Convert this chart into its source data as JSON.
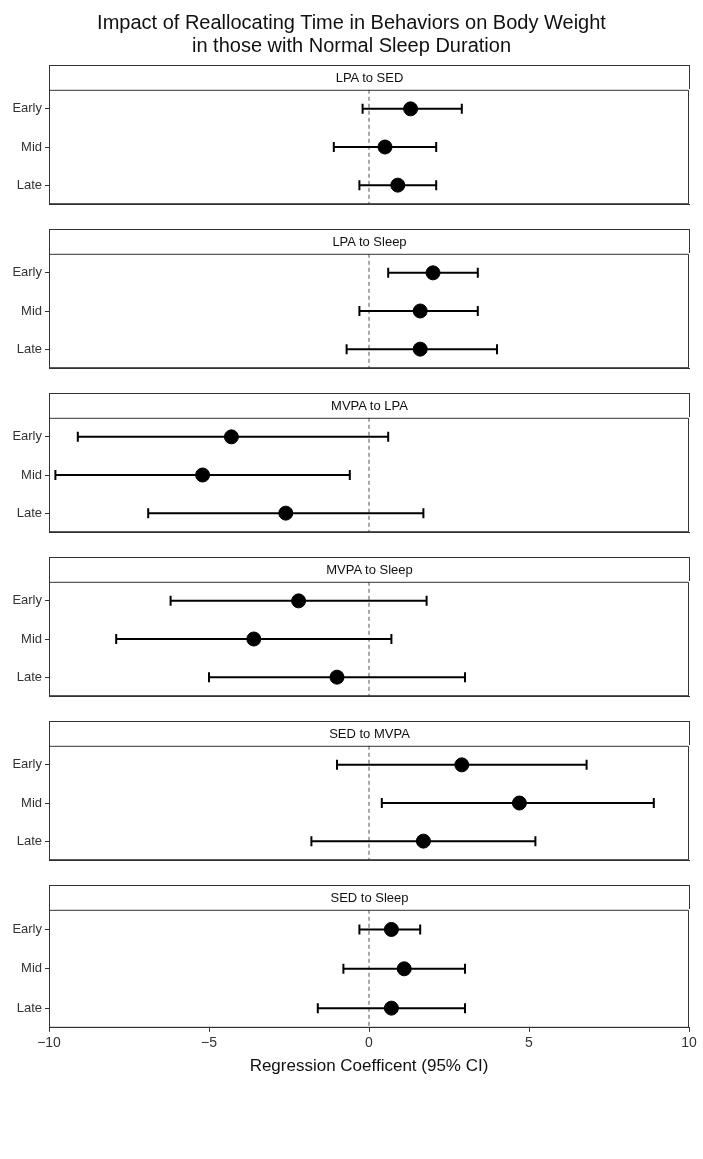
{
  "chart_data": [
    {
      "type": "scatter",
      "title": "Impact of Reallocating Time in Behaviors on Body Weight\nin those with Normal Sleep Duration",
      "subtitle": "LPA to SED",
      "orientation": "horizontal",
      "categories": [
        "Early",
        "Mid",
        "Late"
      ],
      "values": [
        1.3,
        0.5,
        0.9
      ],
      "errors": [
        [
          -0.2,
          2.9
        ],
        [
          -1.1,
          2.1
        ],
        [
          -0.3,
          2.1
        ]
      ],
      "color": "#000000",
      "marker": "circle",
      "xlim": [
        -10,
        10
      ],
      "tick_labels": "y",
      "grid": false,
      "legend": false,
      "ref_lines": [
        {
          "axis": "x",
          "value": 0,
          "line_style": "dashed",
          "color": "#555555"
        }
      ]
    },
    {
      "type": "scatter",
      "subtitle": "LPA to Sleep",
      "orientation": "horizontal",
      "categories": [
        "Early",
        "Mid",
        "Late"
      ],
      "values": [
        2.0,
        1.6,
        1.6
      ],
      "errors": [
        [
          0.6,
          3.4
        ],
        [
          -0.3,
          3.4
        ],
        [
          -0.7,
          4.0
        ]
      ],
      "color": "#000000",
      "marker": "circle",
      "xlim": [
        -10,
        10
      ],
      "tick_labels": "y",
      "grid": false,
      "legend": false,
      "ref_lines": [
        {
          "axis": "x",
          "value": 0,
          "line_style": "dashed",
          "color": "#555555"
        }
      ]
    },
    {
      "type": "scatter",
      "subtitle": "MVPA to LPA",
      "orientation": "horizontal",
      "categories": [
        "Early",
        "Mid",
        "Late"
      ],
      "values": [
        -4.3,
        -5.2,
        -2.6
      ],
      "errors": [
        [
          -9.1,
          0.6
        ],
        [
          -9.8,
          -0.6
        ],
        [
          -6.9,
          1.7
        ]
      ],
      "color": "#000000",
      "marker": "circle",
      "xlim": [
        -10,
        10
      ],
      "tick_labels": "y",
      "grid": false,
      "legend": false,
      "ref_lines": [
        {
          "axis": "x",
          "value": 0,
          "line_style": "dashed",
          "color": "#555555"
        }
      ]
    },
    {
      "type": "scatter",
      "subtitle": "MVPA to Sleep",
      "orientation": "horizontal",
      "categories": [
        "Early",
        "Mid",
        "Late"
      ],
      "values": [
        -2.2,
        -3.6,
        -1.0
      ],
      "errors": [
        [
          -6.2,
          1.8
        ],
        [
          -7.9,
          0.7
        ],
        [
          -5.0,
          3.0
        ]
      ],
      "color": "#000000",
      "marker": "circle",
      "xlim": [
        -10,
        10
      ],
      "tick_labels": "y",
      "grid": false,
      "legend": false,
      "ref_lines": [
        {
          "axis": "x",
          "value": 0,
          "line_style": "dashed",
          "color": "#555555"
        }
      ]
    },
    {
      "type": "scatter",
      "subtitle": "SED to MVPA",
      "orientation": "horizontal",
      "categories": [
        "Early",
        "Mid",
        "Late"
      ],
      "values": [
        2.9,
        4.7,
        1.7
      ],
      "errors": [
        [
          -1.0,
          6.8
        ],
        [
          0.4,
          8.9
        ],
        [
          -1.8,
          5.2
        ]
      ],
      "color": "#000000",
      "marker": "circle",
      "xlim": [
        -10,
        10
      ],
      "tick_labels": "y",
      "grid": false,
      "legend": false,
      "ref_lines": [
        {
          "axis": "x",
          "value": 0,
          "line_style": "dashed",
          "color": "#555555"
        }
      ]
    },
    {
      "type": "scatter",
      "subtitle": "SED to Sleep",
      "xlabel": "Regression Coefficent (95% CI)",
      "orientation": "horizontal",
      "categories": [
        "Early",
        "Mid",
        "Late"
      ],
      "values": [
        0.7,
        1.1,
        0.7
      ],
      "errors": [
        [
          -0.3,
          1.6
        ],
        [
          -0.8,
          3.0
        ],
        [
          -1.6,
          3.0
        ]
      ],
      "color": "#000000",
      "marker": "circle",
      "xlim": [
        -10,
        10
      ],
      "xticks": [
        {
          "value": -10,
          "label": "−10"
        },
        {
          "value": -5,
          "label": "−5"
        },
        0,
        5,
        10
      ],
      "grid": false,
      "legend": false,
      "ref_lines": [
        {
          "axis": "x",
          "value": 0,
          "line_style": "dashed",
          "color": "#555555"
        }
      ]
    }
  ]
}
